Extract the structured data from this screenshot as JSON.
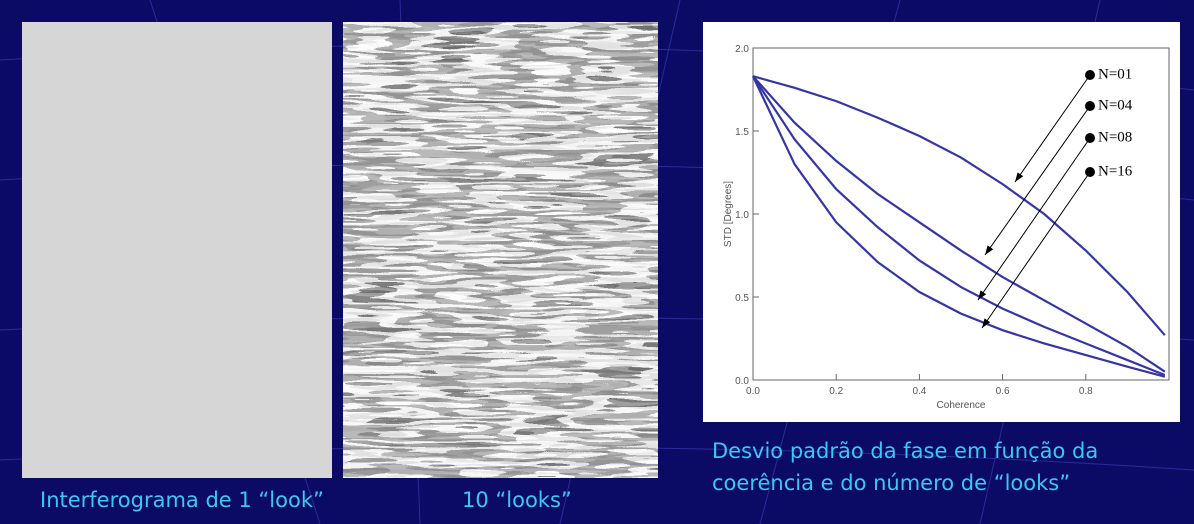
{
  "slide": {
    "left_caption": "Interferograma de 1 “look”",
    "right_caption": "10 “looks”",
    "chart_caption": [
      "Desvio padrão da fase em função da",
      "coerência e do  número de “looks”"
    ]
  },
  "chart_data": {
    "type": "line",
    "xlabel": "Coherence",
    "ylabel": "STD [Degrees]",
    "x": [
      0,
      0.1,
      0.2,
      0.3,
      0.4,
      0.5,
      0.6,
      0.7,
      0.8,
      0.9,
      0.99
    ],
    "series": [
      {
        "name": "N=01",
        "color": "#3535a8",
        "values": [
          1.83,
          1.76,
          1.68,
          1.58,
          1.47,
          1.34,
          1.18,
          1.0,
          0.78,
          0.53,
          0.27
        ]
      },
      {
        "name": "N=04",
        "color": "#3535a8",
        "values": [
          1.83,
          1.55,
          1.32,
          1.12,
          0.95,
          0.78,
          0.62,
          0.48,
          0.34,
          0.2,
          0.05
        ]
      },
      {
        "name": "N=08",
        "color": "#3535a8",
        "values": [
          1.83,
          1.45,
          1.15,
          0.92,
          0.72,
          0.56,
          0.43,
          0.32,
          0.22,
          0.12,
          0.03
        ]
      },
      {
        "name": "N=16",
        "color": "#3535a8",
        "values": [
          1.83,
          1.3,
          0.95,
          0.71,
          0.53,
          0.4,
          0.3,
          0.22,
          0.15,
          0.08,
          0.02
        ]
      }
    ],
    "xlim": [
      0,
      1
    ],
    "ylim": [
      0,
      2
    ],
    "xticks": [
      {
        "value": 0,
        "label": "0.0"
      },
      {
        "value": 0.2,
        "label": "0.2"
      },
      {
        "value": 0.4,
        "label": "0.4"
      },
      {
        "value": 0.6,
        "label": "0.6"
      },
      {
        "value": 0.8,
        "label": "0.8"
      }
    ],
    "yticks": [
      {
        "value": 0,
        "label": "0.0"
      },
      {
        "value": 0.5,
        "label": "0.5"
      },
      {
        "value": 1,
        "label": "1.0"
      },
      {
        "value": 1.5,
        "label": "1.5"
      },
      {
        "value": 2,
        "label": "2.0"
      }
    ]
  }
}
